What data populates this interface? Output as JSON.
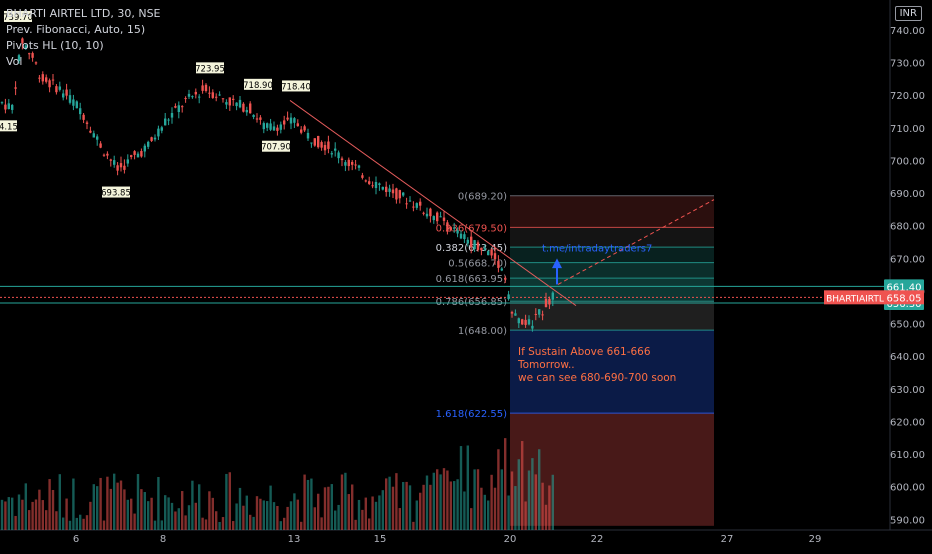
{
  "header": {
    "title": "BHARTI AIRTEL LTD, 30, NSE",
    "indicator_1": "Prev. Fibonacci, Auto, 15)",
    "indicator_2": "Pivots HL (10, 10)",
    "indicator_3": "Vol"
  },
  "currency_label": "INR",
  "colors": {
    "up": "#26a69a",
    "down": "#ef5350",
    "trendline": "#e35b5b",
    "level_line": "#26a69a",
    "price_badge": "#ef5350",
    "fib_text": "#9598a1"
  },
  "chart_data": {
    "type": "candlestick",
    "symbol": "BHARTIAIRTL",
    "timeframe": "30",
    "ylim": [
      588,
      745
    ],
    "y_ticks": [
      590,
      600,
      610,
      620,
      630,
      640,
      650,
      660,
      670,
      680,
      690,
      700,
      710,
      720,
      730,
      740
    ],
    "x_ticks": [
      "6",
      "8",
      "13",
      "15",
      "20",
      "22",
      "27",
      "29"
    ],
    "last_price_label": "BHARTIAIRTL",
    "last_price": "658.05",
    "levels": [
      {
        "label": "661.40",
        "value": 661.4
      },
      {
        "label": "656.30",
        "value": 656.3
      }
    ],
    "pivots": [
      {
        "label": "739.70",
        "value": 739.7
      },
      {
        "label": "714.15",
        "value": 714.15
      },
      {
        "label": "693.85",
        "value": 693.85
      },
      {
        "label": "723.95",
        "value": 723.95
      },
      {
        "label": "718.90",
        "value": 718.9
      },
      {
        "label": "707.90",
        "value": 707.9
      },
      {
        "label": "718.40",
        "value": 718.4
      }
    ],
    "fibonacci": [
      {
        "label": "0(689.20)",
        "value": 689.2
      },
      {
        "label": "0.236(679.50)",
        "value": 679.5
      },
      {
        "label": "0.382(673.45)",
        "value": 673.45
      },
      {
        "label": "0.5(668.70)",
        "value": 668.7
      },
      {
        "label": "0.618(663.95)",
        "value": 663.95
      },
      {
        "label": "0.786(656.85)",
        "value": 656.85
      },
      {
        "label": "1(648.00)",
        "value": 648.0
      },
      {
        "label": "1.618(622.55)",
        "value": 622.55
      }
    ],
    "annotations": [
      "t.me/intradaytraders7",
      "If Sustain Above 661-666",
      "Tomorrow..",
      "we can see 680-690-700 soon"
    ]
  }
}
